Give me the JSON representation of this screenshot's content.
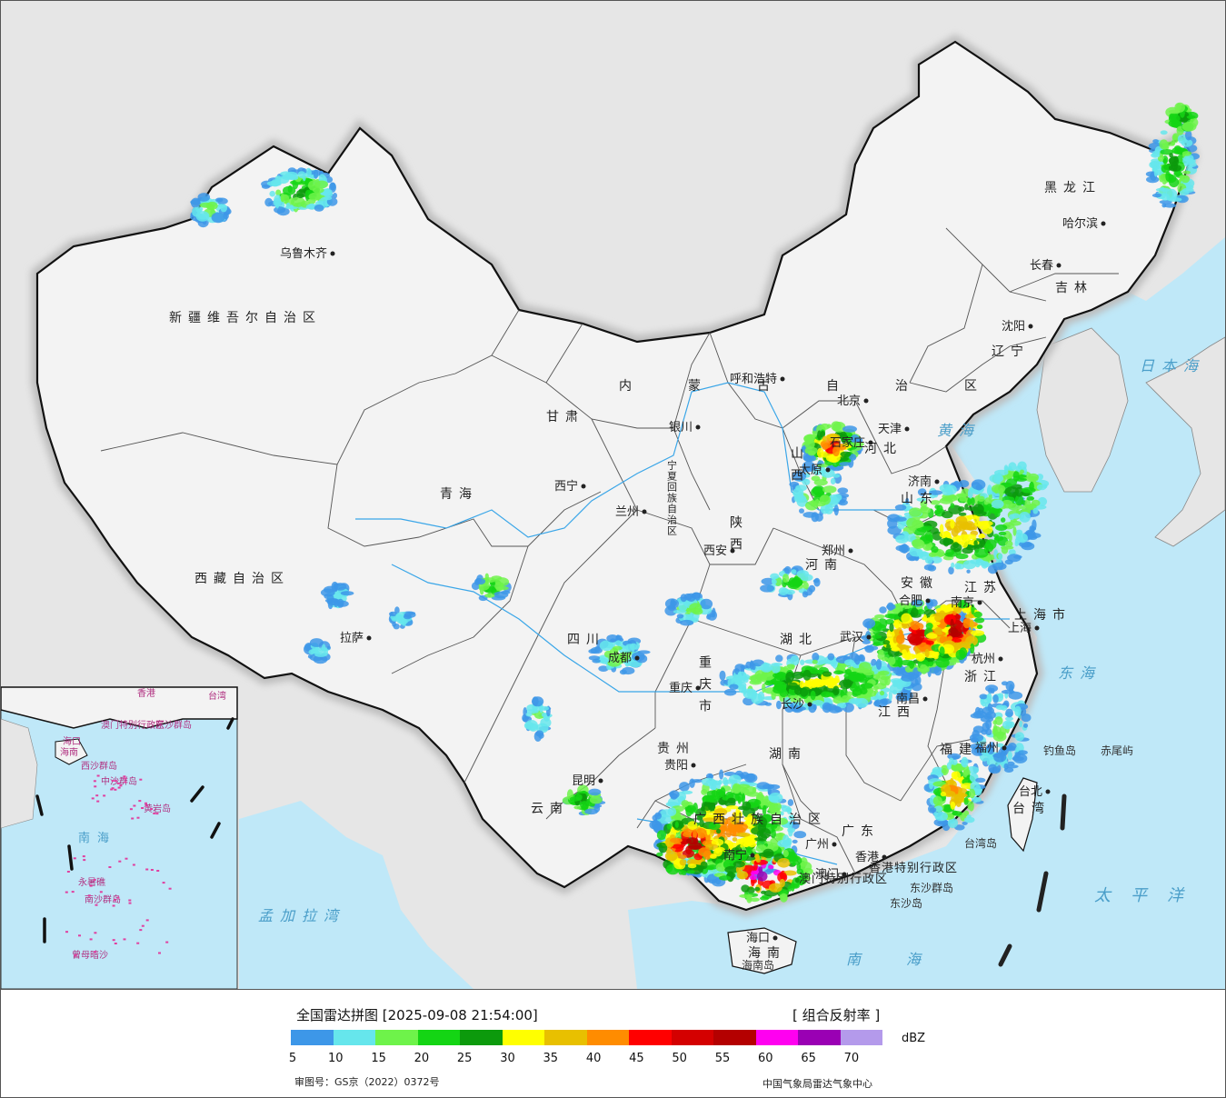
{
  "legend": {
    "title": "全国雷达拼图 [2025-09-08 21:54:00]",
    "product": "[ 组合反射率 ]",
    "unit": "dBZ",
    "review_no": "审图号：GS京（2022）0372号",
    "org": "中国气象局雷达气象中心",
    "ticks": [
      "5",
      "10",
      "15",
      "20",
      "25",
      "30",
      "35",
      "40",
      "45",
      "50",
      "55",
      "60",
      "65",
      "70"
    ],
    "colors": [
      "#3d97e8",
      "#66e6ec",
      "#6ef34a",
      "#14d514",
      "#0c9a0c",
      "#ffff00",
      "#e8c000",
      "#ff8c00",
      "#ff0000",
      "#d40000",
      "#b40000",
      "#ff00f0",
      "#9a00b4",
      "#b49aeb"
    ]
  },
  "map": {
    "colors": {
      "land": "#f3f3f3",
      "foreign": "#e6e6e6",
      "sea": "#bfe8f8",
      "border": "#111111"
    },
    "regions": [
      {
        "name": "新疆维吾尔自治区"
      },
      {
        "name": "西藏自治区"
      },
      {
        "name": "青海"
      },
      {
        "name": "甘肃"
      },
      {
        "name": "内蒙古自治区"
      },
      {
        "name": "黑龙江"
      },
      {
        "name": "吉林"
      },
      {
        "name": "辽宁"
      },
      {
        "name": "四川"
      },
      {
        "name": "云南"
      },
      {
        "name": "贵州"
      },
      {
        "name": "广西壮族自治区"
      },
      {
        "name": "广东"
      },
      {
        "name": "湖南"
      },
      {
        "name": "湖北"
      },
      {
        "name": "江西"
      },
      {
        "name": "福建"
      },
      {
        "name": "浙江"
      },
      {
        "name": "江苏"
      },
      {
        "name": "安徽"
      },
      {
        "name": "山东"
      },
      {
        "name": "河南"
      },
      {
        "name": "河北"
      },
      {
        "name": "山西"
      },
      {
        "name": "陕西"
      },
      {
        "name": "宁夏回族自治区"
      },
      {
        "name": "重庆市"
      },
      {
        "name": "上海市"
      },
      {
        "name": "海南"
      },
      {
        "name": "台湾"
      },
      {
        "name": "香港特别行政区"
      },
      {
        "name": "澳门特别行政区"
      }
    ],
    "cities": [
      {
        "name": "乌鲁木齐"
      },
      {
        "name": "拉萨"
      },
      {
        "name": "西宁"
      },
      {
        "name": "兰州"
      },
      {
        "name": "银川"
      },
      {
        "name": "呼和浩特"
      },
      {
        "name": "北京"
      },
      {
        "name": "天津"
      },
      {
        "name": "石家庄"
      },
      {
        "name": "太原"
      },
      {
        "name": "济南"
      },
      {
        "name": "郑州"
      },
      {
        "name": "西安"
      },
      {
        "name": "成都"
      },
      {
        "name": "重庆"
      },
      {
        "name": "贵阳"
      },
      {
        "name": "昆明"
      },
      {
        "name": "南宁"
      },
      {
        "name": "广州"
      },
      {
        "name": "香港"
      },
      {
        "name": "澳门"
      },
      {
        "name": "海口"
      },
      {
        "name": "长沙"
      },
      {
        "name": "武汉"
      },
      {
        "name": "南昌"
      },
      {
        "name": "合肥"
      },
      {
        "name": "南京"
      },
      {
        "name": "杭州"
      },
      {
        "name": "上海"
      },
      {
        "name": "福州"
      },
      {
        "name": "台北"
      },
      {
        "name": "沈阳"
      },
      {
        "name": "长春"
      },
      {
        "name": "哈尔滨"
      }
    ],
    "seas": [
      {
        "name": "日本海"
      },
      {
        "name": "黄海"
      },
      {
        "name": "东海"
      },
      {
        "name": "太平洋"
      },
      {
        "name": "南海"
      },
      {
        "name": "孟加拉湾"
      }
    ],
    "islands": [
      {
        "name": "钓鱼岛"
      },
      {
        "name": "赤尾屿"
      },
      {
        "name": "台湾岛"
      },
      {
        "name": "海南岛"
      },
      {
        "name": "东沙群岛"
      },
      {
        "name": "东沙岛"
      }
    ],
    "inset": {
      "labels": [
        {
          "name": "海南"
        },
        {
          "name": "南海"
        },
        {
          "name": "中沙群岛"
        },
        {
          "name": "黄岩岛"
        },
        {
          "name": "永暑礁"
        },
        {
          "name": "南沙群岛"
        },
        {
          "name": "曾母暗沙"
        },
        {
          "name": "西沙群岛"
        },
        {
          "name": "东沙群岛"
        },
        {
          "name": "香港"
        },
        {
          "name": "澳门特别行政区"
        },
        {
          "name": "台湾"
        },
        {
          "name": "海口"
        }
      ]
    }
  }
}
